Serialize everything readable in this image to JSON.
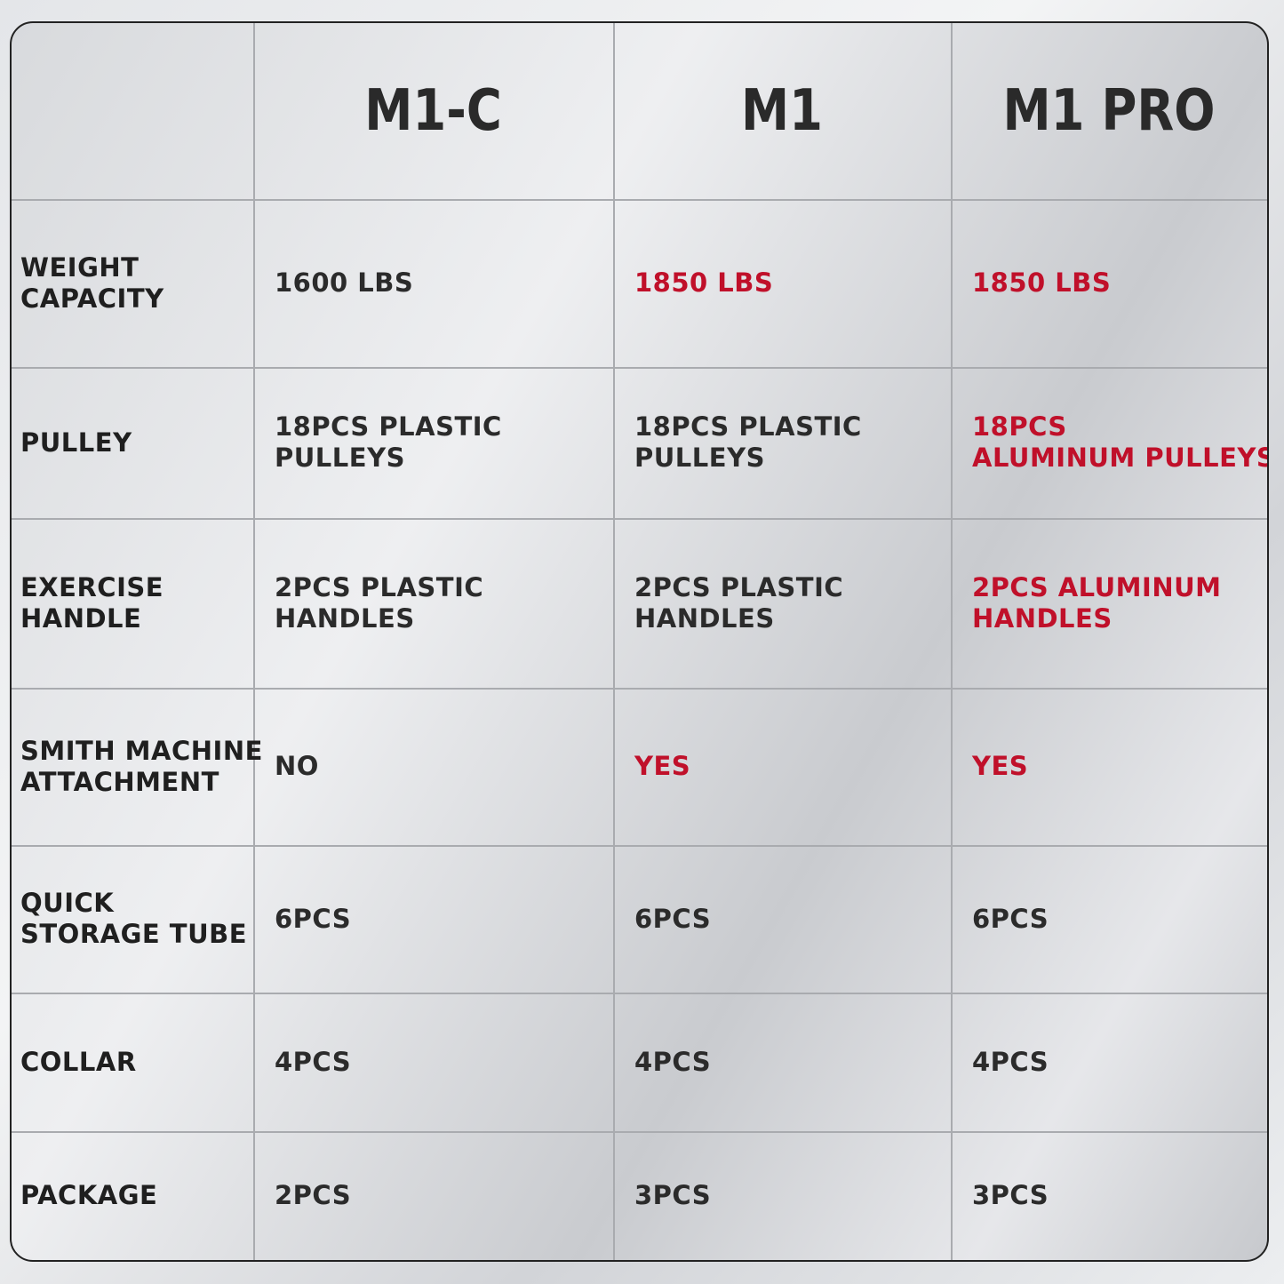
{
  "table": {
    "columns": [
      "M1-C",
      "M1",
      "M1 PRO"
    ],
    "rows": [
      {
        "label": [
          "WEIGHT",
          "CAPACITY"
        ],
        "cells": [
          {
            "lines": [
              "1600 LBS"
            ],
            "color": "#2b2b2b"
          },
          {
            "lines": [
              "1850 LBS"
            ],
            "color": "#c0102a"
          },
          {
            "lines": [
              "1850 LBS"
            ],
            "color": "#c0102a"
          }
        ]
      },
      {
        "label": [
          "PULLEY"
        ],
        "cells": [
          {
            "lines": [
              "18PCS PLASTIC",
              "PULLEYS"
            ],
            "color": "#2b2b2b"
          },
          {
            "lines": [
              "18PCS PLASTIC",
              "PULLEYS"
            ],
            "color": "#2b2b2b"
          },
          {
            "lines": [
              "18PCS",
              "ALUMINUM PULLEYS"
            ],
            "color": "#c0102a"
          }
        ]
      },
      {
        "label": [
          "EXERCISE",
          "HANDLE"
        ],
        "cells": [
          {
            "lines": [
              "2PCS PLASTIC",
              "HANDLES"
            ],
            "color": "#2b2b2b"
          },
          {
            "lines": [
              "2PCS PLASTIC",
              "HANDLES"
            ],
            "color": "#2b2b2b"
          },
          {
            "lines": [
              "2PCS ALUMINUM",
              "HANDLES"
            ],
            "color": "#c0102a"
          }
        ]
      },
      {
        "label": [
          "SMITH MACHINE",
          "ATTACHMENT"
        ],
        "cells": [
          {
            "lines": [
              "NO"
            ],
            "color": "#2b2b2b"
          },
          {
            "lines": [
              "YES"
            ],
            "color": "#c0102a"
          },
          {
            "lines": [
              "YES"
            ],
            "color": "#c0102a"
          }
        ]
      },
      {
        "label": [
          "QUICK",
          "STORAGE TUBE"
        ],
        "cells": [
          {
            "lines": [
              "6PCS"
            ],
            "color": "#2b2b2b"
          },
          {
            "lines": [
              "6PCS"
            ],
            "color": "#2b2b2b"
          },
          {
            "lines": [
              "6PCS"
            ],
            "color": "#2b2b2b"
          }
        ]
      },
      {
        "label": [
          "COLLAR"
        ],
        "cells": [
          {
            "lines": [
              "4PCS"
            ],
            "color": "#2b2b2b"
          },
          {
            "lines": [
              "4PCS"
            ],
            "color": "#2b2b2b"
          },
          {
            "lines": [
              "4PCS"
            ],
            "color": "#2b2b2b"
          }
        ]
      },
      {
        "label": [
          "PACKAGE"
        ],
        "cells": [
          {
            "lines": [
              "2PCS"
            ],
            "color": "#2b2b2b"
          },
          {
            "lines": [
              "3PCS"
            ],
            "color": "#2b2b2b"
          },
          {
            "lines": [
              "3PCS"
            ],
            "color": "#2b2b2b"
          }
        ]
      }
    ]
  }
}
